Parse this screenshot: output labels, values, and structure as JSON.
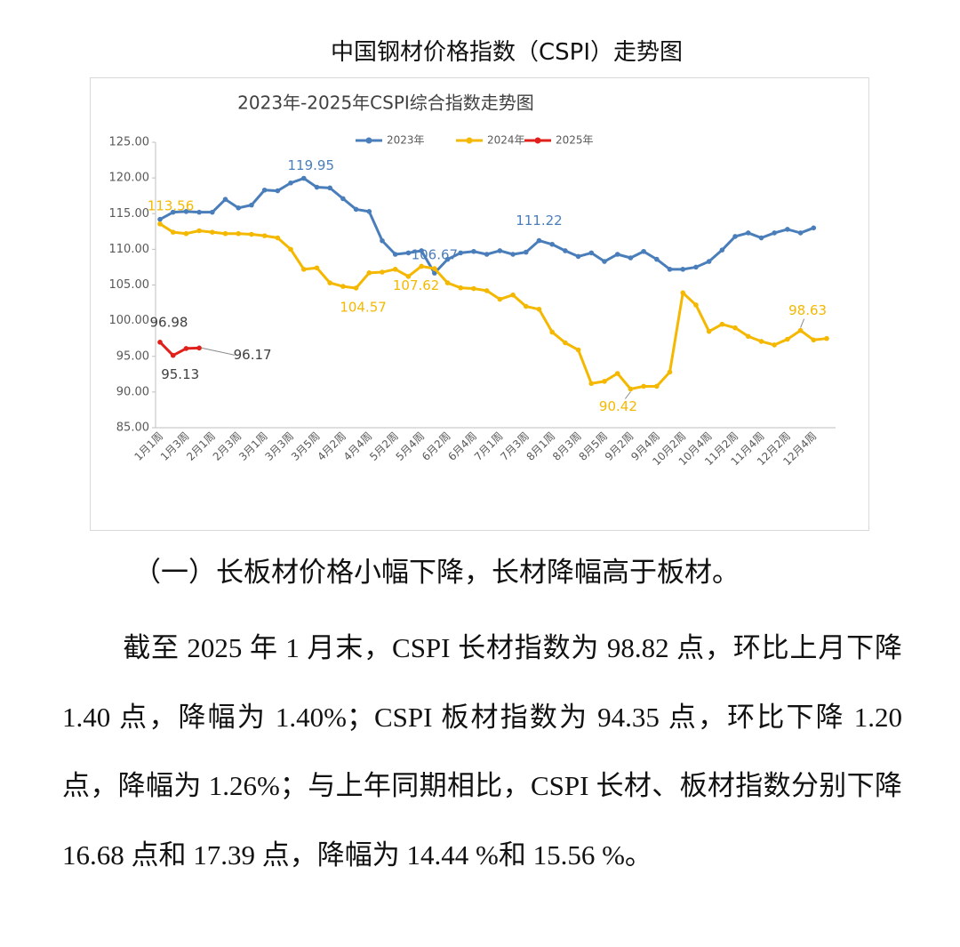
{
  "heading": "中国钢材价格指数（CSPI）走势图",
  "chart_data": {
    "type": "line",
    "title": "2023年-2025年CSPI综合指数走势图",
    "categories": [
      "1月1周",
      null,
      "1月3周",
      null,
      "2月1周",
      null,
      "2月3周",
      null,
      "3月1周",
      null,
      "3月3周",
      null,
      "3月5周",
      null,
      "4月2周",
      null,
      "4月4周",
      null,
      "5月2周",
      null,
      "5月4周",
      null,
      "6月2周",
      null,
      "6月4周",
      null,
      "7月1周",
      null,
      "7月3周",
      null,
      "8月1周",
      null,
      "8月3周",
      null,
      "8月5周",
      null,
      "9月2周",
      null,
      "9月4周",
      null,
      "10月2周",
      null,
      "10月4周",
      null,
      "11月2周",
      null,
      "11月4周",
      null,
      "12月2周",
      null,
      "12月4周",
      null
    ],
    "series": [
      {
        "name": "2023年",
        "color": "#4a7ebb",
        "values": [
          114.2,
          115.2,
          115.3,
          115.2,
          115.2,
          117.0,
          115.8,
          116.2,
          118.3,
          118.2,
          119.3,
          119.95,
          118.7,
          118.6,
          117.1,
          115.6,
          115.3,
          111.2,
          109.3,
          109.5,
          109.8,
          106.67,
          108.6,
          109.5,
          109.7,
          109.3,
          109.8,
          109.3,
          109.6,
          111.22,
          110.7,
          109.8,
          109.0,
          109.5,
          108.3,
          109.3,
          108.8,
          109.7,
          108.6,
          107.2,
          107.2,
          107.5,
          108.3,
          109.9,
          111.8,
          112.3,
          111.6,
          112.3,
          112.8,
          112.3,
          113.0,
          null
        ],
        "value_labels": [
          null,
          null,
          null,
          null,
          null,
          null,
          null,
          null,
          null,
          null,
          null,
          "119.95",
          null,
          null,
          null,
          null,
          null,
          null,
          null,
          null,
          null,
          "106.67",
          null,
          null,
          null,
          null,
          null,
          null,
          null,
          "111.22",
          null,
          null,
          null,
          null,
          null,
          null,
          null,
          null,
          null,
          null,
          null,
          null,
          null,
          null,
          null,
          null,
          null,
          null,
          null,
          null,
          null,
          null
        ]
      },
      {
        "name": "2024年",
        "color": "#f5b800",
        "values": [
          113.56,
          112.4,
          112.2,
          112.6,
          112.4,
          112.2,
          112.2,
          112.1,
          111.9,
          111.6,
          110.0,
          107.2,
          107.4,
          105.3,
          104.8,
          104.57,
          106.7,
          106.8,
          107.2,
          106.2,
          107.62,
          107.3,
          105.3,
          104.6,
          104.5,
          104.2,
          103.0,
          103.6,
          102.0,
          101.6,
          98.4,
          96.9,
          95.9,
          91.2,
          91.5,
          92.6,
          90.42,
          90.8,
          90.8,
          92.8,
          103.9,
          102.2,
          98.5,
          99.5,
          99.0,
          97.8,
          97.1,
          96.6,
          97.4,
          98.63,
          97.3,
          97.5
        ],
        "value_labels": [
          "113.56",
          null,
          null,
          null,
          null,
          null,
          null,
          null,
          null,
          null,
          null,
          null,
          null,
          null,
          null,
          "104.57",
          null,
          null,
          null,
          null,
          "107.62",
          null,
          null,
          null,
          null,
          null,
          null,
          null,
          null,
          null,
          null,
          null,
          null,
          null,
          null,
          null,
          "90.42",
          null,
          null,
          null,
          null,
          null,
          null,
          null,
          null,
          null,
          null,
          null,
          null,
          "98.63",
          null,
          null
        ]
      },
      {
        "name": "2025年",
        "color": "#e0201b",
        "values": [
          96.98,
          95.13,
          96.1,
          96.17,
          null,
          null,
          null,
          null,
          null,
          null,
          null,
          null,
          null,
          null,
          null,
          null,
          null,
          null,
          null,
          null,
          null,
          null,
          null,
          null,
          null,
          null,
          null,
          null,
          null,
          null,
          null,
          null,
          null,
          null,
          null,
          null,
          null,
          null,
          null,
          null,
          null,
          null,
          null,
          null,
          null,
          null,
          null,
          null,
          null,
          null,
          null,
          null
        ],
        "value_labels": [
          "96.98",
          "95.13",
          null,
          "96.17",
          null,
          null,
          null,
          null,
          null,
          null,
          null,
          null,
          null,
          null,
          null,
          null,
          null,
          null,
          null,
          null,
          null,
          null,
          null,
          null,
          null,
          null,
          null,
          null,
          null,
          null,
          null,
          null,
          null,
          null,
          null,
          null,
          null,
          null,
          null,
          null,
          null,
          null,
          null,
          null,
          null,
          null,
          null,
          null,
          null,
          null,
          null,
          null
        ]
      }
    ],
    "ylim": [
      85,
      125
    ],
    "yticks": [
      {
        "value": 85,
        "label": "85.00"
      },
      {
        "value": 90,
        "label": "90.00"
      },
      {
        "value": 95,
        "label": "95.00"
      },
      {
        "value": 100,
        "label": "100.00"
      },
      {
        "value": 105,
        "label": "105.00"
      },
      {
        "value": 110,
        "label": "110.00"
      },
      {
        "value": 115,
        "label": "115.00"
      },
      {
        "value": 120,
        "label": "120.00"
      },
      {
        "value": 125,
        "label": "125.00"
      }
    ],
    "grid": false,
    "legend": "top"
  },
  "section_title": "（一）长板材价格小幅下降，长材降幅高于板材。",
  "paragraph": "截至 2025 年 1 月末，CSPI 长材指数为 98.82 点，环比上月下降 1.40 点，降幅为 1.40%；CSPI 板材指数为 94.35 点，环比下降 1.20 点，降幅为 1.26%；与上年同期相比，CSPI 长材、板材指数分别下降 16.68 点和 17.39 点，降幅为 14.44 %和 15.56 %。"
}
